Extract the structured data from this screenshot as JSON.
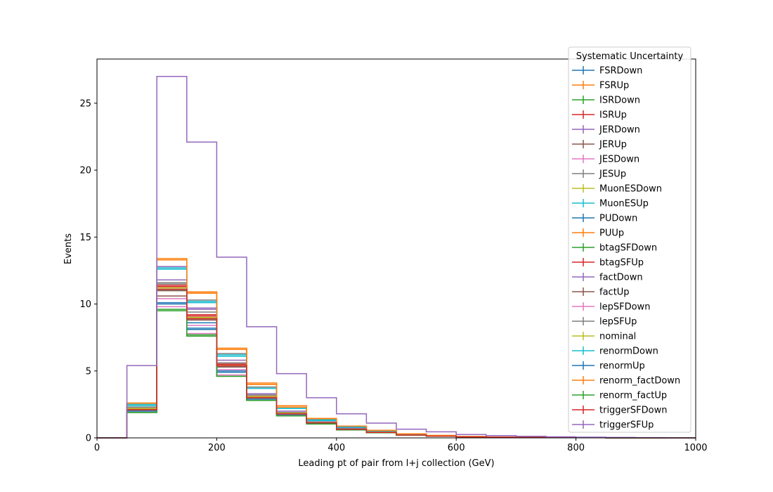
{
  "chart_data": {
    "type": "step",
    "title": "",
    "xlabel": "Leading pt of pair from l+j collection (GeV)",
    "ylabel": "Events",
    "xlim": [
      0,
      1000
    ],
    "ylim": [
      0,
      28.3
    ],
    "x_ticks": [
      0,
      200,
      400,
      600,
      800,
      1000
    ],
    "y_ticks": [
      0,
      5,
      10,
      15,
      20,
      25
    ],
    "bin_edges": [
      0,
      50,
      100,
      150,
      200,
      250,
      300,
      350,
      400,
      450,
      500,
      550,
      600,
      650,
      700,
      750,
      800,
      850,
      900,
      950,
      1000
    ],
    "grid": false,
    "legend": {
      "title": "Systematic Uncertainty",
      "placement": "top-right"
    },
    "series": [
      {
        "name": "FSRDown",
        "color": "#1f77b4",
        "values": [
          0,
          2.1,
          11.1,
          8.6,
          5.3,
          3.0,
          1.8,
          1.15,
          0.65,
          0.42,
          0.22,
          0.14,
          0.08,
          0.05,
          0.03,
          0.02,
          0.01,
          0.01,
          0.0,
          0.0
        ]
      },
      {
        "name": "FSRUp",
        "color": "#ff7f0e",
        "values": [
          0,
          2.5,
          13.3,
          10.8,
          6.6,
          4.0,
          2.3,
          1.4,
          0.85,
          0.55,
          0.3,
          0.18,
          0.1,
          0.06,
          0.04,
          0.02,
          0.01,
          0.01,
          0.0,
          0.0
        ]
      },
      {
        "name": "ISRDown",
        "color": "#2ca02c",
        "values": [
          0,
          2.0,
          11.0,
          8.9,
          5.4,
          2.9,
          1.75,
          1.1,
          0.62,
          0.4,
          0.2,
          0.13,
          0.07,
          0.05,
          0.03,
          0.02,
          0.01,
          0.0,
          0.0,
          0.0
        ]
      },
      {
        "name": "ISRUp",
        "color": "#d62728",
        "values": [
          0,
          2.2,
          11.3,
          9.1,
          5.5,
          3.1,
          1.85,
          1.15,
          0.66,
          0.43,
          0.22,
          0.14,
          0.08,
          0.05,
          0.03,
          0.02,
          0.01,
          0.0,
          0.0,
          0.0
        ]
      },
      {
        "name": "JERDown",
        "color": "#9467bd",
        "values": [
          0,
          2.3,
          11.8,
          9.6,
          5.6,
          3.2,
          1.9,
          1.2,
          0.7,
          0.45,
          0.23,
          0.15,
          0.08,
          0.05,
          0.03,
          0.02,
          0.01,
          0.0,
          0.0,
          0.0
        ]
      },
      {
        "name": "JERUp",
        "color": "#8c564b",
        "values": [
          0,
          2.1,
          10.6,
          8.9,
          5.3,
          3.0,
          1.8,
          1.1,
          0.64,
          0.41,
          0.21,
          0.13,
          0.07,
          0.05,
          0.03,
          0.02,
          0.01,
          0.0,
          0.0,
          0.0
        ]
      },
      {
        "name": "JESDown",
        "color": "#e377c2",
        "values": [
          0,
          2.0,
          9.8,
          7.8,
          4.7,
          2.8,
          1.7,
          1.05,
          0.6,
          0.38,
          0.2,
          0.12,
          0.07,
          0.04,
          0.03,
          0.02,
          0.01,
          0.0,
          0.0,
          0.0
        ]
      },
      {
        "name": "JESUp",
        "color": "#7f7f7f",
        "values": [
          0,
          2.4,
          11.6,
          10.3,
          6.3,
          3.8,
          2.2,
          1.35,
          0.8,
          0.5,
          0.27,
          0.17,
          0.09,
          0.06,
          0.04,
          0.02,
          0.01,
          0.01,
          0.0,
          0.0
        ]
      },
      {
        "name": "MuonESDown",
        "color": "#bcbd22",
        "values": [
          0,
          2.1,
          11.2,
          9.0,
          5.4,
          3.0,
          1.8,
          1.12,
          0.64,
          0.42,
          0.21,
          0.14,
          0.08,
          0.05,
          0.03,
          0.02,
          0.01,
          0.0,
          0.0,
          0.0
        ]
      },
      {
        "name": "MuonESUp",
        "color": "#17becf",
        "values": [
          0,
          2.4,
          12.7,
          10.1,
          6.1,
          3.7,
          2.2,
          1.3,
          0.78,
          0.5,
          0.27,
          0.16,
          0.09,
          0.06,
          0.04,
          0.02,
          0.01,
          0.01,
          0.0,
          0.0
        ]
      },
      {
        "name": "PUDown",
        "color": "#1f77b4",
        "values": [
          0,
          2.2,
          10.1,
          8.2,
          5.0,
          2.9,
          1.8,
          1.1,
          0.63,
          0.41,
          0.21,
          0.13,
          0.07,
          0.05,
          0.03,
          0.02,
          0.01,
          0.0,
          0.0,
          0.0
        ]
      },
      {
        "name": "PUUp",
        "color": "#ff7f0e",
        "values": [
          0,
          2.6,
          13.4,
          10.9,
          6.7,
          4.1,
          2.4,
          1.45,
          0.88,
          0.56,
          0.3,
          0.18,
          0.1,
          0.06,
          0.04,
          0.02,
          0.01,
          0.01,
          0.0,
          0.0
        ]
      },
      {
        "name": "btagSFDown",
        "color": "#2ca02c",
        "values": [
          0,
          1.9,
          9.5,
          7.6,
          4.6,
          2.8,
          1.65,
          1.05,
          0.6,
          0.38,
          0.2,
          0.12,
          0.07,
          0.04,
          0.03,
          0.02,
          0.01,
          0.0,
          0.0,
          0.0
        ]
      },
      {
        "name": "btagSFUp",
        "color": "#d62728",
        "values": [
          0,
          2.2,
          11.4,
          9.2,
          5.6,
          3.1,
          1.9,
          1.15,
          0.67,
          0.44,
          0.22,
          0.14,
          0.08,
          0.05,
          0.03,
          0.02,
          0.01,
          0.0,
          0.0,
          0.0
        ]
      },
      {
        "name": "factDown",
        "color": "#9467bd",
        "values": [
          0,
          2.3,
          12.8,
          9.7,
          5.8,
          3.3,
          2.0,
          1.2,
          0.72,
          0.46,
          0.24,
          0.15,
          0.08,
          0.05,
          0.03,
          0.02,
          0.01,
          0.0,
          0.0,
          0.0
        ]
      },
      {
        "name": "factUp",
        "color": "#8c564b",
        "values": [
          0,
          2.1,
          11.0,
          8.8,
          5.3,
          3.0,
          1.8,
          1.1,
          0.64,
          0.41,
          0.21,
          0.13,
          0.07,
          0.05,
          0.03,
          0.02,
          0.01,
          0.0,
          0.0,
          0.0
        ]
      },
      {
        "name": "lepSFDown",
        "color": "#e377c2",
        "values": [
          0,
          2.0,
          10.4,
          8.4,
          5.1,
          2.9,
          1.75,
          1.08,
          0.62,
          0.4,
          0.2,
          0.13,
          0.07,
          0.05,
          0.03,
          0.02,
          0.01,
          0.0,
          0.0,
          0.0
        ]
      },
      {
        "name": "lepSFUp",
        "color": "#7f7f7f",
        "values": [
          0,
          2.3,
          11.5,
          9.4,
          5.6,
          3.2,
          1.9,
          1.18,
          0.68,
          0.44,
          0.22,
          0.14,
          0.08,
          0.05,
          0.03,
          0.02,
          0.01,
          0.0,
          0.0,
          0.0
        ]
      },
      {
        "name": "nominal",
        "color": "#bcbd22",
        "values": [
          0,
          2.2,
          11.2,
          9.0,
          5.4,
          3.1,
          1.85,
          1.13,
          0.65,
          0.42,
          0.21,
          0.14,
          0.08,
          0.05,
          0.03,
          0.02,
          0.01,
          0.0,
          0.0,
          0.0
        ]
      },
      {
        "name": "renormDown",
        "color": "#17becf",
        "values": [
          0,
          2.5,
          12.6,
          10.2,
          6.2,
          3.7,
          2.2,
          1.35,
          0.8,
          0.52,
          0.27,
          0.17,
          0.09,
          0.06,
          0.04,
          0.02,
          0.01,
          0.01,
          0.0,
          0.0
        ]
      },
      {
        "name": "renormUp",
        "color": "#1f77b4",
        "values": [
          0,
          2.0,
          10.0,
          8.1,
          4.9,
          2.9,
          1.75,
          1.08,
          0.62,
          0.4,
          0.2,
          0.13,
          0.07,
          0.05,
          0.03,
          0.02,
          0.01,
          0.0,
          0.0,
          0.0
        ]
      },
      {
        "name": "renorm_factDown",
        "color": "#ff7f0e",
        "values": [
          0,
          2.6,
          13.3,
          10.9,
          6.6,
          4.0,
          2.4,
          1.45,
          0.88,
          0.56,
          0.3,
          0.18,
          0.1,
          0.06,
          0.04,
          0.02,
          0.01,
          0.01,
          0.0,
          0.0
        ]
      },
      {
        "name": "renorm_factUp",
        "color": "#2ca02c",
        "values": [
          0,
          1.9,
          9.6,
          7.7,
          4.6,
          2.8,
          1.65,
          1.04,
          0.6,
          0.38,
          0.2,
          0.12,
          0.07,
          0.04,
          0.03,
          0.02,
          0.01,
          0.0,
          0.0,
          0.0
        ]
      },
      {
        "name": "triggerSFDown",
        "color": "#d62728",
        "values": [
          0,
          2.1,
          11.1,
          8.9,
          5.4,
          3.0,
          1.8,
          1.12,
          0.64,
          0.41,
          0.21,
          0.13,
          0.07,
          0.05,
          0.03,
          0.02,
          0.01,
          0.0,
          0.0,
          0.0
        ]
      },
      {
        "name": "triggerSFUp",
        "color": "#9467bd",
        "values": [
          0,
          5.4,
          27.0,
          22.1,
          13.5,
          8.3,
          4.8,
          3.0,
          1.8,
          1.1,
          0.65,
          0.45,
          0.25,
          0.17,
          0.12,
          0.08,
          0.05,
          0.03,
          0.02,
          0.0
        ]
      }
    ]
  }
}
